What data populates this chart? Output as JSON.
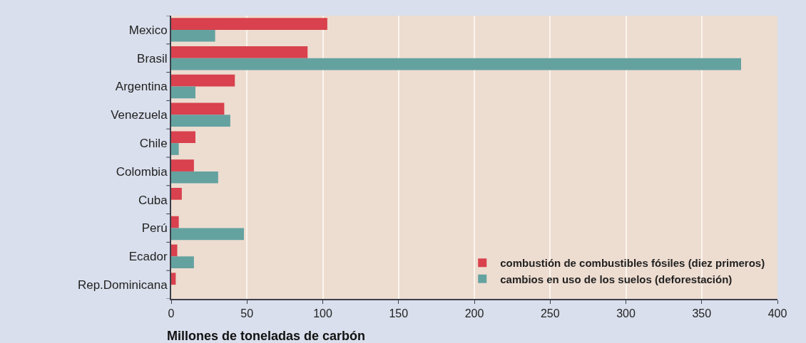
{
  "chart_data": {
    "type": "bar",
    "orientation": "horizontal",
    "xlabel": "Millones de toneladas de carbón",
    "categories": [
      "Mexico",
      "Brasil",
      "Argentina",
      "Venezuela",
      "Chile",
      "Colombia",
      "Cuba",
      "Perú",
      "Ecador",
      "Rep.Dominicana"
    ],
    "series": [
      {
        "name": "combustión de combustibles fósiles (diez primeros)",
        "color": "#d8414d",
        "values": [
          103,
          90,
          42,
          35,
          16,
          15,
          7,
          5,
          4,
          3
        ]
      },
      {
        "name": "cambios en uso de los suelos (deforestación)",
        "color": "#64a2a0",
        "values": [
          29,
          376,
          16,
          39,
          5,
          31,
          null,
          48,
          15,
          null
        ]
      }
    ],
    "xlim": [
      0,
      400
    ],
    "xticks": [
      0,
      50,
      100,
      150,
      200,
      250,
      300,
      350,
      400
    ],
    "grid": "x",
    "legend": "bottom right"
  }
}
